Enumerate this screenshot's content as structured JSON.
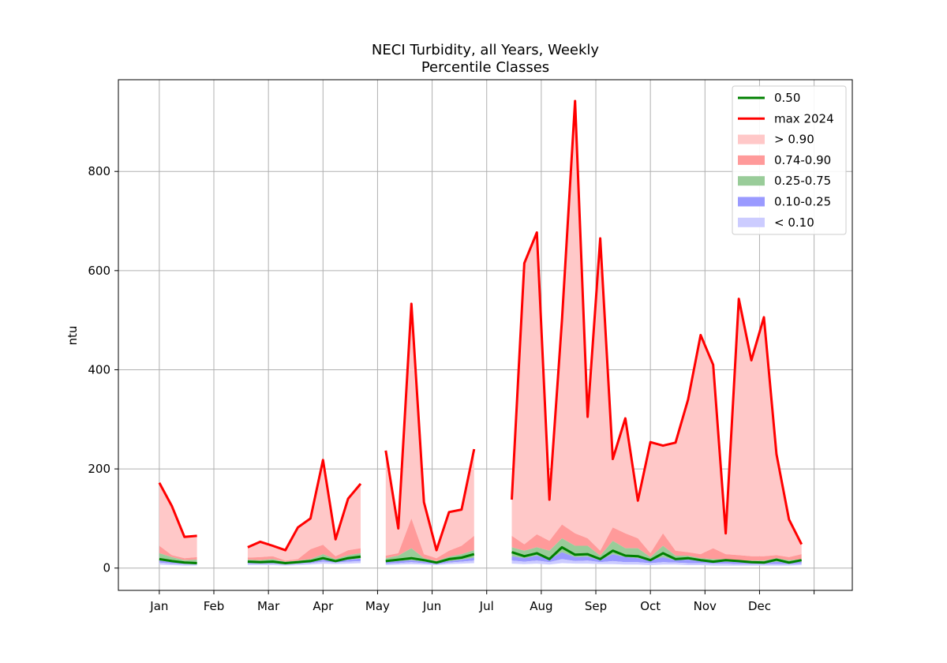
{
  "chart_data": {
    "type": "area",
    "title": "NECI Turbidity, all Years, Weekly",
    "subtitle": "Percentile Classes",
    "ylabel": "ntu",
    "xlabel": "",
    "ylim": [
      -45,
      985
    ],
    "yticks": [
      0,
      200,
      400,
      600,
      800
    ],
    "ytick_labels": [
      "0",
      "200",
      "400",
      "600",
      "800"
    ],
    "xlim": [
      -0.75,
      12.7
    ],
    "month_ticks": [
      {
        "pos": 0,
        "label": "Jan"
      },
      {
        "pos": 1,
        "label": "Feb"
      },
      {
        "pos": 2,
        "label": "Mar"
      },
      {
        "pos": 3,
        "label": "Apr"
      },
      {
        "pos": 4,
        "label": "May"
      },
      {
        "pos": 5,
        "label": "Jun"
      },
      {
        "pos": 6,
        "label": "Jul"
      },
      {
        "pos": 7,
        "label": "Aug"
      },
      {
        "pos": 8,
        "label": "Sep"
      },
      {
        "pos": 9,
        "label": "Oct"
      },
      {
        "pos": 10,
        "label": "Nov"
      },
      {
        "pos": 11,
        "label": "Dec"
      },
      {
        "pos": 12,
        "label": ""
      }
    ],
    "grid": true,
    "legend_position": "top-right",
    "segments": [
      {
        "x": [
          0.0,
          0.23,
          0.46,
          0.69
        ],
        "p05": [
          7,
          6,
          5,
          5
        ],
        "p10": [
          11,
          9,
          8,
          8
        ],
        "p25": [
          15,
          12,
          10,
          10
        ],
        "p50": [
          18,
          14,
          11,
          10
        ],
        "p75": [
          30,
          22,
          16,
          17
        ],
        "p90": [
          45,
          26,
          20,
          22
        ],
        "max2024": [
          172,
          125,
          63,
          65
        ]
      },
      {
        "x": [
          1.62,
          1.85,
          2.08,
          2.31,
          2.54,
          2.77,
          3.0,
          3.23,
          3.46,
          3.69
        ],
        "p05": [
          6,
          6,
          6,
          5,
          6,
          7,
          9,
          8,
          9,
          10
        ],
        "p10": [
          9,
          9,
          9,
          8,
          9,
          10,
          13,
          11,
          13,
          14
        ],
        "p25": [
          11,
          11,
          12,
          10,
          11,
          12,
          17,
          13,
          17,
          19
        ],
        "p50": [
          13,
          12,
          13,
          10,
          12,
          14,
          20,
          14,
          20,
          23
        ],
        "p75": [
          17,
          16,
          18,
          13,
          15,
          18,
          28,
          18,
          26,
          30
        ],
        "p90": [
          21,
          22,
          24,
          15,
          18,
          38,
          47,
          24,
          36,
          40
        ],
        "max2024": [
          42,
          53,
          45,
          36,
          82,
          100,
          218,
          58,
          140,
          170
        ]
      },
      {
        "x": [
          4.15,
          4.38,
          4.62,
          4.85,
          5.08,
          5.31,
          5.54,
          5.77
        ],
        "p05": [
          6,
          7,
          8,
          7,
          6,
          8,
          9,
          10
        ],
        "p10": [
          9,
          10,
          12,
          10,
          8,
          11,
          13,
          15
        ],
        "p25": [
          12,
          14,
          16,
          13,
          11,
          14,
          17,
          21
        ],
        "p50": [
          14,
          17,
          20,
          16,
          11,
          18,
          21,
          28
        ],
        "p75": [
          20,
          25,
          40,
          20,
          14,
          23,
          28,
          36
        ],
        "p90": [
          25,
          30,
          100,
          28,
          20,
          35,
          45,
          65
        ],
        "max2024": [
          237,
          80,
          533,
          133,
          36,
          113,
          118,
          240
        ]
      },
      {
        "x": [
          6.46,
          6.69,
          6.92,
          7.15,
          7.38,
          7.62,
          7.85,
          8.08,
          8.31,
          8.54,
          8.77,
          9.0,
          9.23,
          9.46,
          9.69,
          9.92,
          10.15,
          10.38,
          10.62,
          10.85,
          11.08,
          11.31,
          11.54,
          11.77
        ],
        "p05": [
          9,
          8,
          9,
          7,
          10,
          9,
          9,
          8,
          8,
          7,
          7,
          6,
          7,
          7,
          6,
          6,
          5,
          5,
          5,
          5,
          5,
          5,
          5,
          6
        ],
        "p10": [
          15,
          13,
          15,
          12,
          18,
          14,
          15,
          12,
          14,
          12,
          12,
          10,
          12,
          11,
          10,
          10,
          9,
          9,
          8,
          8,
          8,
          8,
          8,
          9
        ],
        "p25": [
          24,
          20,
          25,
          18,
          32,
          22,
          23,
          16,
          28,
          22,
          20,
          16,
          22,
          16,
          17,
          14,
          12,
          13,
          12,
          11,
          10,
          13,
          11,
          13
        ],
        "p50": [
          32,
          24,
          30,
          18,
          42,
          27,
          28,
          18,
          35,
          25,
          24,
          16,
          30,
          18,
          20,
          16,
          13,
          16,
          14,
          12,
          11,
          17,
          11,
          16
        ],
        "p75": [
          42,
          35,
          42,
          35,
          60,
          45,
          45,
          25,
          55,
          40,
          40,
          22,
          45,
          25,
          25,
          20,
          18,
          18,
          16,
          15,
          15,
          20,
          16,
          18
        ],
        "p90": [
          65,
          48,
          68,
          55,
          88,
          70,
          60,
          35,
          82,
          70,
          60,
          30,
          70,
          35,
          32,
          28,
          40,
          28,
          26,
          24,
          24,
          26,
          22,
          28
        ],
        "max2024": [
          138,
          615,
          677,
          138,
          500,
          942,
          305,
          665,
          220,
          302,
          136,
          254,
          247,
          253,
          340,
          470,
          410,
          70,
          543,
          419,
          506,
          230,
          98,
          48
        ]
      }
    ],
    "series": [
      {
        "name": "0.50",
        "key": "p50",
        "kind": "line",
        "color": "#008000"
      },
      {
        "name": "max 2024",
        "key": "max2024",
        "kind": "line",
        "color": "#ff0000"
      },
      {
        "name": "> 0.90",
        "kind": "band",
        "lower": "p90",
        "upper": "max2024",
        "color": "#ffc8c8"
      },
      {
        "name": "0.74-0.90",
        "kind": "band",
        "lower": "p75",
        "upper": "p90",
        "color": "#ff9a9a"
      },
      {
        "name": "0.25-0.75",
        "kind": "band",
        "lower": "p25",
        "upper": "p75",
        "color": "#99cc99"
      },
      {
        "name": "0.10-0.25",
        "kind": "band",
        "lower": "p10",
        "upper": "p25",
        "color": "#9a9aff"
      },
      {
        "name": "< 0.10",
        "kind": "band",
        "lower": "p05",
        "upper": "p10",
        "color": "#ccccff"
      }
    ]
  }
}
